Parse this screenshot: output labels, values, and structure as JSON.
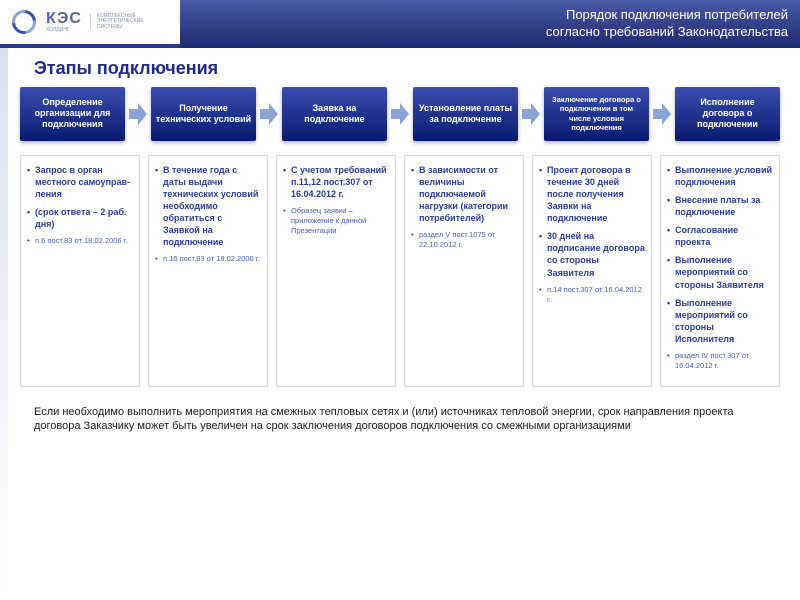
{
  "header": {
    "logo_main": "КЭС",
    "logo_sub1": "ХОЛДИНГ",
    "logo_tag": "КОМПЛЕКСНЫЕ ЭНЕРГЕТИЧЕСКИЕ СИСТЕМЫ",
    "title_line1": "Порядок подключения потребителей",
    "title_line2": "согласно требований Законодательства"
  },
  "stages_title": "Этапы подключения",
  "stages": [
    "Определение организации для подключения",
    "Получение технических условий",
    "Заявка на подключение",
    "Установление платы за подключение",
    "Заключение договора о подключении в том числе условия подключения",
    "Исполнение договора о подключении"
  ],
  "details": [
    [
      {
        "t": "Запрос в орган местного самоуправ-ления",
        "b": true
      },
      {
        "t": "(срок ответа – 2 раб. дня)",
        "b": true
      },
      {
        "t": "п.6 пост.83 от 18.02.2006 г.",
        "r": true
      }
    ],
    [
      {
        "t": "В течение года с даты выдачи технических условий необходимо обратиться с Заявкой на подключение",
        "b": true
      },
      {
        "t": "п.16 пост.83 от 18.02.2006 г.",
        "r": true
      }
    ],
    [
      {
        "t": "С учетом требований п.11,12 пост.307 от 16.04.2012 г.",
        "b": true
      },
      {
        "t": "Образец заявки – приложение к данной Презентации",
        "r": true
      }
    ],
    [
      {
        "t": "В зависимости от величины подключаемой нагрузки (категории потребителей)",
        "b": true
      },
      {
        "t": "раздел V пост.1075 от 22.10.2012 г.",
        "r": true
      }
    ],
    [
      {
        "t": "Проект договора в течение 30 дней после получения Заявки на подключение",
        "b": true
      },
      {
        "t": "30 дней на подписание договора со стороны Заявителя",
        "b": true
      },
      {
        "t": "п.14 пост.307 от 16.04.2012 г.",
        "r": true
      }
    ],
    [
      {
        "t": "Выполнение условий подключения",
        "b": true
      },
      {
        "t": "Внесение платы за подключение",
        "b": true
      },
      {
        "t": "Согласование проекта",
        "b": true
      },
      {
        "t": "Выполнение мероприятий со стороны Заявителя",
        "b": true
      },
      {
        "t": "Выполнение мероприятий со стороны Исполнителя",
        "b": true
      },
      {
        "t": "раздел IV пост.307 от 16.04.2012 г.",
        "r": true
      }
    ]
  ],
  "footer": "Если необходимо выполнить мероприятия на смежных тепловых сетях и (или) источниках тепловой энергии, срок направления проекта договора Заказчику может быть увеличен на срок заключения договоров подключения со смежными организациями",
  "colors": {
    "title_gradient_top": "#4a5aa8",
    "title_gradient_bottom": "#1e2a6f",
    "stage_gradient_top": "#3a4eb0",
    "stage_gradient_bottom": "#0a1a6f",
    "accent_text": "#2a3a9f",
    "ref_text": "#4a5ab8",
    "arrow_color": "#8aa4d8",
    "detail_border": "#d8d8d8",
    "stages_title_color": "#1e2a8f"
  }
}
